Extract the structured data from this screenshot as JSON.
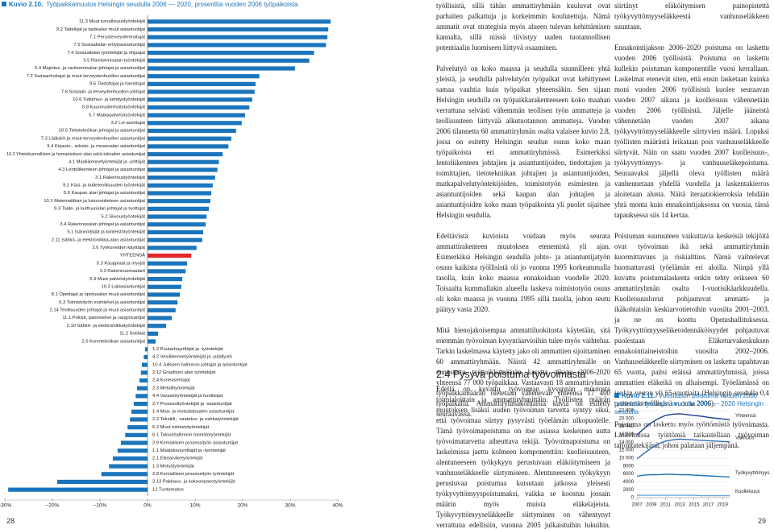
{
  "chart_data": [
    {
      "type": "bar",
      "orientation": "horizontal",
      "figure_label": "Kuvio 2.10.",
      "title": "Työpaikkamuutos Helsingin seudulla 2006 — 2020, prosenttia vuoden 2006 työpaikoista",
      "categories": [
        "11.3 Muut turvallisuustyöntekijät",
        "9.2 Taiteilijat ja taidealan muut asiantuntijat",
        "7.1 Perusterveydenhoitajat",
        "7.5 Sosiaalialan erityisasiantuntijat",
        "7.4 Sosiaalialan työntekijät ja ohjaajat",
        "5.5 Ravitsemisalan työntekijät",
        "5.4 Majoitus- ja ravitsemisalan johtajat ja asiantuntijat",
        "7.2 Sairaanhoitajat ja muut terveydenhuollon asiantuntijat",
        "9.5 Tiedottajat ja toimittajat",
        "7.6 Sosiaali- ja terveydenhuollon johtajat",
        "10.6 Tutkimus- ja kehitystyöntekijät",
        "5.8 Kauneudenhoitotyöntekijät",
        "5.7 Matkapalvelutyöntekijät",
        "3.2 Lvi-asentajat",
        "10.5 Tietotekniikan johtajat ja asiantuntijat",
        "7.3 Lääkärit ja muut terveydenhuollon asiantuntijat",
        "9.4 Kirjasto-, arkisto- ja museoalan asiantuntijat",
        "10.2 Yhteiskunnallisen ja humanistisen alan sekä talouden asiantuntijat",
        "4.1 Maaliikennetyöntekijät ja -yrittäjät",
        "4.3 Lentoliikenteen johtajat ja asiantuntijat",
        "3.1 Rakennustyöntekijät",
        "9.1 Käsi- ja taideteollisuuden työntekijät",
        "5.6 Kaupan alan johtajat ja asiantuntijat",
        "10.1 Matematiikan ja luonnontieteen asiantuntijat",
        "9.3 Taide- ja kulttuurialan johtajat ja tuottajat",
        "5.2 Siivoustyöntekijät",
        "3.4 Rakennusalan johtajat ja asiantuntijat",
        "5.1 Isännöitsijät ja kiinteistötyöntekijät",
        "2.11 Sähkö- ja elektroniikka-alan asiantuntijat",
        "2.6 Työkoneiden käyttäjät",
        "YHTEENSÄ",
        "5.3 Kauppiaat ja myyjät",
        "3.3 Rakennusmaalarit",
        "5.9 Muut palvelutyöntekijät",
        "10.3 Lakiasiantuntijat",
        "8.1 Opettajat ja opetusalan muut asiantuntijat",
        "6.3 Toimistotyön esimiehet ja asiantuntijat",
        "2.14 Teollisuuden johtajat ja muut asiantuntijat",
        "11.1 Poliisit, palomiehet ja vanginvartijat",
        "2.10 Sähkö- ja elektroniikkatyöntekijät",
        "11.2 Sotilaat",
        "2.5 Konetekniikan asiantuntijat",
        "1.2 Puutarhayrittäjät ja -työntekijät",
        "4.2 Vesiliikennetyöntekijät ja -päällystö",
        "10.4 Julkisen hallinnon johtajat ja asiantuntijat",
        "2.12 Graafisen alan työntekijät",
        "2.4 Koneasentajat",
        "2.3 Metallityöntekijät",
        "4.4 Varastotyöntekijät ja huolitsijat",
        "2.7 Prosessityöntekijät ja -asiantuntijat",
        "1.4 Maa- ja metsätalouden asiantuntijat",
        "2.2 Tekstiili-, vaatetus- ja nahkatyöntekijät",
        "6.2 Muut toimistotyöntekijät",
        "6.1 Taloushallinnon toimistotyöntekijät",
        "2.9 Kemiallisen prosessityön asiantuntijat",
        "1.1 Maatalousyrittäjät ja -työntekijät",
        "2.1 Elintarviketyöntekijät",
        "1.3 Metsätyöntekijät",
        "2.8 Kemiallisen prosessityön työntekijät",
        "2.13 Pakkaus- ja kokoonpanotyöntekijät",
        "12 Tuntematon"
      ],
      "values": [
        38.5,
        38,
        37.8,
        37.5,
        35,
        34,
        31,
        23.5,
        22.7,
        22.5,
        22,
        21.4,
        20.5,
        19.8,
        18.6,
        17.6,
        17,
        15.8,
        15,
        14.7,
        14.2,
        13.7,
        13.4,
        13.2,
        12.9,
        12.4,
        12.2,
        11.7,
        11.5,
        10.3,
        9.2,
        8.3,
        8,
        7.3,
        7.1,
        6.8,
        6.3,
        5.9,
        5.1,
        3.9,
        2.2,
        1.7,
        -0.5,
        -0.8,
        -1.2,
        -1.4,
        -1.7,
        -2.2,
        -2.5,
        -2.9,
        -3.4,
        -3.7,
        -4.2,
        -4.7,
        -5.6,
        -6.3,
        -7.3,
        -8.1,
        -9.7,
        -19,
        -29.3
      ],
      "colors": [
        "#1b75bc",
        "#1b75bc",
        "#1b75bc",
        "#1b75bc",
        "#1b75bc",
        "#1b75bc",
        "#1b75bc",
        "#1b75bc",
        "#1b75bc",
        "#1b75bc",
        "#1b75bc",
        "#1b75bc",
        "#1b75bc",
        "#1b75bc",
        "#1b75bc",
        "#1b75bc",
        "#1b75bc",
        "#1b75bc",
        "#1b75bc",
        "#1b75bc",
        "#1b75bc",
        "#1b75bc",
        "#1b75bc",
        "#1b75bc",
        "#1b75bc",
        "#1b75bc",
        "#1b75bc",
        "#1b75bc",
        "#1b75bc",
        "#1b75bc",
        "#e3262b",
        "#1b75bc",
        "#1b75bc",
        "#1b75bc",
        "#1b75bc",
        "#1b75bc",
        "#1b75bc",
        "#1b75bc",
        "#1b75bc",
        "#1b75bc",
        "#1b75bc",
        "#1b75bc",
        "#1b75bc",
        "#1b75bc",
        "#1b75bc",
        "#1b75bc",
        "#1b75bc",
        "#1b75bc",
        "#1b75bc",
        "#1b75bc",
        "#1b75bc",
        "#1b75bc",
        "#1b75bc",
        "#1b75bc",
        "#1b75bc",
        "#1b75bc",
        "#1b75bc",
        "#1b75bc",
        "#1b75bc",
        "#1b75bc",
        "#1b75bc"
      ],
      "xlim": [
        -30,
        40
      ],
      "xticks": [
        {
          "value": -30,
          "label": "–30%"
        },
        {
          "value": -20,
          "label": "–20%"
        },
        {
          "value": -10,
          "label": "–10%"
        },
        {
          "value": 0,
          "label": "0%"
        },
        {
          "value": 10,
          "label": "10%"
        },
        {
          "value": 20,
          "label": "20%"
        },
        {
          "value": 30,
          "label": "30%"
        },
        {
          "value": 40,
          "label": "40%"
        }
      ],
      "grid": false
    },
    {
      "type": "line",
      "figure_label": "Kuvio 2.11.",
      "title": "Vuositason poistuma vuoden 2006 työllisistä Helsingin seudulla 2006 — 2020 Helsingin seudulla",
      "x": [
        2007,
        2008,
        2009,
        2010,
        2011,
        2012,
        2013,
        2014,
        2015,
        2016,
        2017,
        2018,
        2019,
        2020
      ],
      "series": [
        {
          "name": "Yhteensä",
          "color": "#1f3f8f",
          "values": [
            15800,
            17500,
            18900,
            20000,
            20800,
            21100,
            21200,
            21000,
            20800,
            20600,
            20300,
            20100,
            19900,
            19700
          ]
        },
        {
          "name": "Vanhuus",
          "color": "#2f6db5",
          "values": [
            9800,
            11200,
            12500,
            13600,
            14300,
            14600,
            14800,
            14700,
            14600,
            14500,
            14400,
            14300,
            14200,
            14100
          ]
        },
        {
          "name": "Työkyvyttömyys",
          "color": "#1b75bc",
          "values": [
            5400,
            5700,
            5800,
            5800,
            5900,
            5900,
            5800,
            5800,
            5700,
            5600,
            5500,
            5400,
            5300,
            5200
          ]
        },
        {
          "name": "Kuolleisuus",
          "color": "#6aa6dc",
          "values": [
            600,
            600,
            600,
            600,
            600,
            600,
            600,
            600,
            600,
            500,
            500,
            500,
            500,
            500
          ]
        }
      ],
      "xlim": [
        2007,
        2020
      ],
      "xticks": [
        2007,
        2009,
        2011,
        2013,
        2015,
        2017,
        2019
      ],
      "ylim": [
        0,
        22000
      ],
      "yticks": [
        0,
        2000,
        4000,
        6000,
        8000,
        {
          "value": 10000,
          "label": "10 000"
        },
        {
          "value": 12000,
          "label": "12 000"
        },
        {
          "value": 14000,
          "label": "14 000"
        },
        {
          "value": 16000,
          "label": "16 000"
        },
        {
          "value": 18000,
          "label": "18 000"
        },
        {
          "value": 20000,
          "label": "20 000"
        },
        {
          "value": 22000,
          "label": "22 000"
        }
      ],
      "grid": true,
      "legend": "right"
    }
  ],
  "text": {
    "column_1": [
      "työllisistä, sillä tähän ammattiryhmään kuuluvat ovat parhaiten palkattuja ja korkeimmin koulutettuja. Nämä ammatit ovat strategisia myös alueen tulevan kehittämisen kannalta, sillä niissä tiivistyy uuden tuotannollisen potentiaalin luomiseen liittyvä osaaminen.",
      "Palvelutyö on koko maassa ja seudulla suunnilleen yhtä yleistä, ja seudulla palvelutyön työpaikat ovat kehittyneet samaa vauhtia kuin työpaikat yhteensäkin. Sen sijaan Helsingin seudulla on työpaikkarakenteeseen koko maahan verrattuna selvästi vähemmän teollisen työn ammatteja ja teollisuuteen liittyvää alkutuotannon ammatteja. Vuoden 2006 tilannetta 60 ammattiryhmän osalta valaisee kuvio 2.8, jossa on esitetty Helsingin seudun osuus koko maan työpaikoista eri ammattiryhmissä. Esimerkiksi lentoliikenteen johtajien ja asiantuntijoiden, tiedottajien ja toimittajien, tietotekniikan johtajien ja asiantuntijoiden, matkapalvelutyöntekijöiden, toimistotyön esimiesten ja asiantuntijoiden sekä kaupan alan johtajien ja asiantuntijoiden koko maan työpaikoista yli puolet sijaitsee Helsingin seudulla.",
      "Edeltävistä kuvioista voidaan myös seurata ammattirakenteen muutoksen etenemistä yli ajan. Esimerkiksi Helsingin seudulla johto- ja asiantuntijatyön osuus kaikista työllisistä oli jo vuonna 1995 korkeammalla tasolla, kuin koko maassa ennakoidaan vuodelle 2020. Toisaalta kummallakin alueella laskeva toimistotyön osuus oli koko maassa jo vuonna 1995 sillä tasolla, johon seutu päätyy vasta 2020.",
      "Mitä hienojakoisempaa ammattiluokitusta käytetään, sitä enemmän työvoiman kysyntäarvioihin tulee myös vaihtelua. Tarkin laskelmassa käytetty jako oli ammattien sijoittaminen 60 ammattiryhmään. Näistä 42 ammattiryhmälle on ennustettu työpaikkamäärän kasvua aikana 2006-2020 yhteensä 77 000 työpaikkaa. Vastaavasti 18 ammattiryhmän työpaikkamäärän oletetaan vähenevän yhteensä 17 400 työpaikalla. Ammattiryhmäkohtaisia kuvia on esitetty seuraavassa."
    ],
    "heading": "2.4 Pysyvä poistuma työvoimasta",
    "section_body": "Edellä on kuvattu työvoiman kysynnän muutosta toimialoittain ja ammattiryhmittäin. Työllisten määrän muutoksen lisäksi uuden työvoiman tarvetta syntyy siksi, että työvoimaa siirtyy pysyvästi työelämän ulkopuolelle. Tämä työvoimapoistuma on itse asiassa keskeinen uutta työvoimatarvetta aiheuttava tekijä. Työvoimapoistuma on laskelmissa jaettu kolmeen komponenttiin: kuolleisuuteen, alentuneeseen työkykyyn perustuvaan eläköitymiseen ja vanhuuseläkkeelle siirtymiseen. Alentuneeseen työkykyyn perustuvaa poistumaa kutsutaan jatkossa yleisesti työkyvyttömyyspoistumaksi, vaikka se koostuu jossain määrin myös muista eläkelajeista. Työkyvyttömyyseläkkeelle siirtyminen on vähentynyt verrattuna edellisiin, vuonna 2005 julkaistuihin lukuihin. Tämä on",
    "column_2": [
      "siirtänyt eläköitymisen painopistettä työkyvyttömyyseläkkeestä vanhuuseläkkeen suuntaan.",
      "Ennakointijakson 2006–2020 poistuma on laskettu vuoden 2006 työllisistä. Poistuma on laskettu kullekin poistuman komponentille vuosi kerrallaan. Laskelmat etenevät siten, että ensin lasketaan kuinka moni vuoden 2006 työllisistä kuolee seuraavan vuoden 2007 aikana ja kuolleisuus vähennetään vuoden 2006 työllisistä. Jäljelle jääneistä vähennetään vuoden 2007 aikana työkyvyttömyyseläkkeelle siirtyvien määrä. Lopuksi työllisten määrästä leikataan pois vanhuuseläkkeelle siirtyvät. Näin on saatu vuoden 2007 kuolleisuus-, työkyvyttömyys- ja vanhuuseläkepoistuma. Seuraavaksi jäljellä oleva työllisten määrä vanhennetaan yhdellä vuodella ja laskentakierros aloitetaan alusta. Näitä iteraatiokierroksia tehdään yhtä monta kuin ennakointijaksossa on vuosia, tässä tapauksessa siis 14 kertaa.",
      "Poistuman suuruuteen vaikuttavia keskeisiä tekijöitä ovat työvoiman ikä sekä ammattiryhmän kuormittavuus ja riskialttius. Nämä vaihtelevat huomattavasti työelämän eri aloilla. Niinpä yllä kuvattu poistumalaskenta onkin tehty erikseen 60 ammattiryhmän osalta 1-vuotisikäarkkuudella. Kuolleisuusluvut pohjautuvat ammatti- ja ikäkohtaisiin keskiarvotietoihin vuosilta 2001–2003, ja ne on koottu Opetushallituksessa. Työkyvyttömyyseläketodennäköisyydet pohjautuvat puolestaan Eläketurvakeskuksen ennakointiaineistoihin vuosilta 2002–2006. Vanhuuseläkkeelle siirtyminen on laskettu tapahtuvan 65 vuotta, paitsi eräissä ammattiryhmissä, joissa ammattien eläkeikä on alhaisempi. Työelämässä on jonkin verran yli 65-vuotiaita (Helsingin seudulla 0,4 prosenttia työllisistä vuonna 2006).",
      "Poistuma on laskettu myös työttömästä työvoimasta. Laskelmissa työttömiä tarkastellaan työvoiman tarjontatekijänä, johon palataan jäljempänä."
    ]
  },
  "page_numbers": [
    "28",
    "29"
  ]
}
